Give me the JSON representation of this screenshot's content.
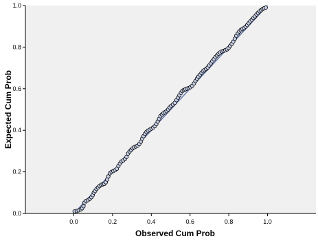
{
  "chart_data": {
    "type": "scatter",
    "title": "",
    "xlabel": "Observed Cum Prob",
    "ylabel": "Expected Cum Prob",
    "xlim": [
      -0.25,
      1.25
    ],
    "ylim": [
      0.0,
      1.0
    ],
    "x_ticks": [
      "0.0",
      "0.2",
      "0.4",
      "0.6",
      "0.8",
      "1.0"
    ],
    "y_ticks": [
      "0.0",
      "0.2",
      "0.4",
      "0.6",
      "0.8",
      "1.0"
    ],
    "grid": false,
    "reference_line": {
      "from": [
        0,
        0
      ],
      "to": [
        1,
        1
      ],
      "color": "#6a7fb0"
    },
    "colors": {
      "plot_background": "#f0f0f0",
      "marker_edge": "#000000",
      "marker_fill": "#c7d0e8",
      "reference_line": "#6a7fb0"
    },
    "series": [
      {
        "values": [
          [
            0.004,
            0.01
          ],
          [
            0.015,
            0.012
          ],
          [
            0.025,
            0.015
          ],
          [
            0.036,
            0.02
          ],
          [
            0.043,
            0.025
          ],
          [
            0.05,
            0.035
          ],
          [
            0.055,
            0.052
          ],
          [
            0.063,
            0.06
          ],
          [
            0.073,
            0.064
          ],
          [
            0.082,
            0.07
          ],
          [
            0.091,
            0.078
          ],
          [
            0.098,
            0.088
          ],
          [
            0.103,
            0.1
          ],
          [
            0.11,
            0.108
          ],
          [
            0.117,
            0.118
          ],
          [
            0.125,
            0.125
          ],
          [
            0.133,
            0.132
          ],
          [
            0.141,
            0.138
          ],
          [
            0.149,
            0.14
          ],
          [
            0.157,
            0.142
          ],
          [
            0.165,
            0.15
          ],
          [
            0.172,
            0.163
          ],
          [
            0.178,
            0.178
          ],
          [
            0.186,
            0.193
          ],
          [
            0.195,
            0.2
          ],
          [
            0.204,
            0.204
          ],
          [
            0.213,
            0.208
          ],
          [
            0.222,
            0.215
          ],
          [
            0.23,
            0.228
          ],
          [
            0.238,
            0.24
          ],
          [
            0.246,
            0.25
          ],
          [
            0.255,
            0.255
          ],
          [
            0.264,
            0.262
          ],
          [
            0.272,
            0.272
          ],
          [
            0.28,
            0.288
          ],
          [
            0.288,
            0.298
          ],
          [
            0.295,
            0.305
          ],
          [
            0.303,
            0.313
          ],
          [
            0.311,
            0.318
          ],
          [
            0.32,
            0.322
          ],
          [
            0.329,
            0.326
          ],
          [
            0.338,
            0.334
          ],
          [
            0.346,
            0.345
          ],
          [
            0.353,
            0.36
          ],
          [
            0.36,
            0.372
          ],
          [
            0.367,
            0.383
          ],
          [
            0.375,
            0.392
          ],
          [
            0.383,
            0.398
          ],
          [
            0.392,
            0.403
          ],
          [
            0.401,
            0.408
          ],
          [
            0.41,
            0.413
          ],
          [
            0.418,
            0.42
          ],
          [
            0.426,
            0.43
          ],
          [
            0.433,
            0.442
          ],
          [
            0.44,
            0.455
          ],
          [
            0.447,
            0.468
          ],
          [
            0.455,
            0.476
          ],
          [
            0.463,
            0.482
          ],
          [
            0.471,
            0.487
          ],
          [
            0.479,
            0.492
          ],
          [
            0.487,
            0.5
          ],
          [
            0.495,
            0.51
          ],
          [
            0.503,
            0.518
          ],
          [
            0.512,
            0.524
          ],
          [
            0.521,
            0.532
          ],
          [
            0.53,
            0.545
          ],
          [
            0.538,
            0.557
          ],
          [
            0.545,
            0.568
          ],
          [
            0.553,
            0.58
          ],
          [
            0.56,
            0.589
          ],
          [
            0.568,
            0.594
          ],
          [
            0.576,
            0.597
          ],
          [
            0.584,
            0.6
          ],
          [
            0.593,
            0.603
          ],
          [
            0.602,
            0.607
          ],
          [
            0.611,
            0.614
          ],
          [
            0.62,
            0.625
          ],
          [
            0.628,
            0.637
          ],
          [
            0.636,
            0.648
          ],
          [
            0.643,
            0.658
          ],
          [
            0.651,
            0.667
          ],
          [
            0.659,
            0.676
          ],
          [
            0.667,
            0.684
          ],
          [
            0.675,
            0.69
          ],
          [
            0.683,
            0.695
          ],
          [
            0.691,
            0.702
          ],
          [
            0.699,
            0.712
          ],
          [
            0.707,
            0.722
          ],
          [
            0.715,
            0.732
          ],
          [
            0.723,
            0.742
          ],
          [
            0.731,
            0.752
          ],
          [
            0.739,
            0.76
          ],
          [
            0.747,
            0.768
          ],
          [
            0.755,
            0.774
          ],
          [
            0.764,
            0.779
          ],
          [
            0.773,
            0.782
          ],
          [
            0.782,
            0.785
          ],
          [
            0.791,
            0.789
          ],
          [
            0.799,
            0.796
          ],
          [
            0.807,
            0.805
          ],
          [
            0.815,
            0.815
          ],
          [
            0.823,
            0.826
          ],
          [
            0.831,
            0.84
          ],
          [
            0.839,
            0.855
          ],
          [
            0.847,
            0.866
          ],
          [
            0.854,
            0.875
          ],
          [
            0.862,
            0.882
          ],
          [
            0.87,
            0.887
          ],
          [
            0.879,
            0.892
          ],
          [
            0.887,
            0.898
          ],
          [
            0.895,
            0.906
          ],
          [
            0.903,
            0.915
          ],
          [
            0.911,
            0.924
          ],
          [
            0.919,
            0.932
          ],
          [
            0.927,
            0.94
          ],
          [
            0.935,
            0.948
          ],
          [
            0.943,
            0.957
          ],
          [
            0.951,
            0.965
          ],
          [
            0.959,
            0.972
          ],
          [
            0.967,
            0.978
          ],
          [
            0.975,
            0.983
          ],
          [
            0.983,
            0.987
          ],
          [
            0.991,
            0.99
          ]
        ]
      }
    ]
  }
}
